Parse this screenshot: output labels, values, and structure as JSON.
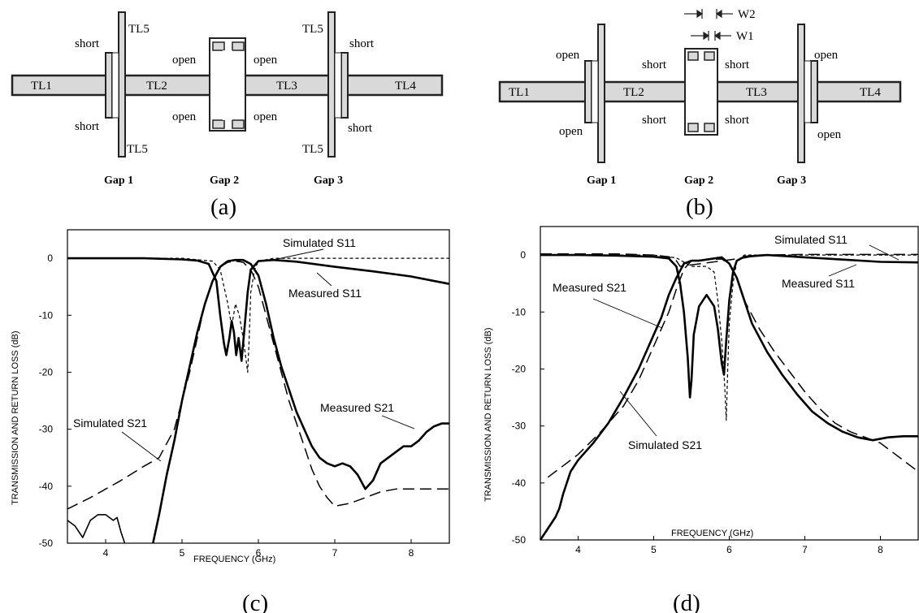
{
  "panels": {
    "a": {
      "caption": "(a)",
      "lines": [
        "TL1",
        "TL2",
        "TL3",
        "TL4"
      ],
      "stubs": [
        "TL5",
        "TL5",
        "TL5",
        "TL5"
      ],
      "terms": {
        "g1_top": "short",
        "g1_bot": "short",
        "g2_tl": "open",
        "g2_tr": "open",
        "g2_bl": "open",
        "g2_br": "open",
        "g3_top": "short",
        "g3_bot": "short"
      },
      "gaps": [
        "Gap 1",
        "Gap 2",
        "Gap 3"
      ]
    },
    "b": {
      "caption": "(b)",
      "lines": [
        "TL1",
        "TL2",
        "TL3",
        "TL4"
      ],
      "terms": {
        "g1_top": "open",
        "g1_bot": "open",
        "g2_tl": "short",
        "g2_tr": "short",
        "g2_bl": "short",
        "g2_br": "short",
        "g3_top": "open",
        "g3_bot": "open"
      },
      "widths": [
        "W2",
        "W1"
      ],
      "gaps": [
        "Gap 1",
        "Gap 2",
        "Gap 3"
      ]
    },
    "c": {
      "caption": "(c)",
      "annotations": {
        "sim_s11": "Simulated S11",
        "meas_s11": "Measured S11",
        "meas_s21": "Measured S21",
        "sim_s21": "Simulated S21"
      }
    },
    "d": {
      "caption": "(d)",
      "annotations": {
        "sim_s11": "Simulated S11",
        "meas_s21": "Measured S21",
        "meas_s11": "Measured S11",
        "sim_s21": "Simulated S21"
      }
    }
  },
  "chart_data": [
    {
      "type": "line",
      "panel": "c",
      "xlabel": "FREQUENCY (GHz)",
      "ylabel": "TRANSMISSION AND RETURN LOSS (dB)",
      "xlim": [
        3.5,
        8.5
      ],
      "ylim": [
        -50,
        5
      ],
      "xticks": [
        4,
        5,
        6,
        7,
        8
      ],
      "yticks": [
        0,
        -10,
        -20,
        -30,
        -40,
        -50
      ],
      "series": [
        {
          "name": "Measured S21",
          "style": "solid-thick",
          "points": [
            [
              4.62,
              -50
            ],
            [
              4.7,
              -45
            ],
            [
              4.8,
              -38
            ],
            [
              4.9,
              -32
            ],
            [
              5.0,
              -25
            ],
            [
              5.1,
              -19
            ],
            [
              5.2,
              -13
            ],
            [
              5.3,
              -8
            ],
            [
              5.4,
              -4
            ],
            [
              5.5,
              -1.5
            ],
            [
              5.6,
              -0.5
            ],
            [
              5.7,
              -0.3
            ],
            [
              5.8,
              -0.3
            ],
            [
              5.9,
              -1
            ],
            [
              6.0,
              -3
            ],
            [
              6.1,
              -8
            ],
            [
              6.2,
              -14
            ],
            [
              6.3,
              -19
            ],
            [
              6.4,
              -23
            ],
            [
              6.5,
              -27
            ],
            [
              6.6,
              -30
            ],
            [
              6.7,
              -33
            ],
            [
              6.8,
              -35
            ],
            [
              6.9,
              -36
            ],
            [
              7.0,
              -36.5
            ],
            [
              7.1,
              -36
            ],
            [
              7.2,
              -36.5
            ],
            [
              7.3,
              -38
            ],
            [
              7.4,
              -40.5
            ],
            [
              7.5,
              -39
            ],
            [
              7.6,
              -36
            ],
            [
              7.7,
              -35
            ],
            [
              7.8,
              -34
            ],
            [
              7.9,
              -33
            ],
            [
              8.0,
              -33
            ],
            [
              8.1,
              -32
            ],
            [
              8.2,
              -30.5
            ],
            [
              8.3,
              -29.5
            ],
            [
              8.4,
              -29
            ],
            [
              8.5,
              -29
            ]
          ]
        },
        {
          "name": "Measured S21",
          "style": "solid-thin",
          "points": [
            [
              3.5,
              -46
            ],
            [
              3.6,
              -47
            ],
            [
              3.7,
              -49
            ],
            [
              3.8,
              -46
            ],
            [
              3.9,
              -45
            ],
            [
              4.0,
              -45
            ],
            [
              4.1,
              -46
            ],
            [
              4.15,
              -45.5
            ],
            [
              4.2,
              -48
            ],
            [
              4.25,
              -50
            ]
          ]
        },
        {
          "name": "Measured S11",
          "style": "solid-thick",
          "points": [
            [
              3.5,
              0
            ],
            [
              4.0,
              0
            ],
            [
              4.5,
              0
            ],
            [
              5.0,
              -0.2
            ],
            [
              5.2,
              -0.4
            ],
            [
              5.35,
              -1
            ],
            [
              5.45,
              -4
            ],
            [
              5.5,
              -10
            ],
            [
              5.55,
              -15
            ],
            [
              5.58,
              -17
            ],
            [
              5.62,
              -14
            ],
            [
              5.65,
              -11
            ],
            [
              5.68,
              -13
            ],
            [
              5.71,
              -17
            ],
            [
              5.74,
              -14
            ],
            [
              5.78,
              -18
            ],
            [
              5.82,
              -12
            ],
            [
              5.86,
              -6
            ],
            [
              5.9,
              -2
            ],
            [
              6.0,
              -0.5
            ],
            [
              6.2,
              -0.3
            ],
            [
              6.5,
              -0.6
            ],
            [
              7.0,
              -1.5
            ],
            [
              7.5,
              -2.3
            ],
            [
              8.0,
              -3.2
            ],
            [
              8.5,
              -4.5
            ]
          ]
        },
        {
          "name": "Simulated S11",
          "style": "dashed-fine",
          "points": [
            [
              3.5,
              0
            ],
            [
              5.0,
              0
            ],
            [
              5.4,
              -0.5
            ],
            [
              5.5,
              -2
            ],
            [
              5.6,
              -8
            ],
            [
              5.65,
              -12
            ],
            [
              5.7,
              -8
            ],
            [
              5.75,
              -10
            ],
            [
              5.8,
              -14
            ],
            [
              5.84,
              -18
            ],
            [
              5.86,
              -20
            ],
            [
              5.88,
              -14
            ],
            [
              5.9,
              -6
            ],
            [
              5.95,
              -2
            ],
            [
              6.0,
              -0.5
            ],
            [
              6.2,
              0
            ],
            [
              8.5,
              0
            ]
          ]
        },
        {
          "name": "Simulated S21",
          "style": "dashed-long",
          "points": [
            [
              3.5,
              -44
            ],
            [
              3.8,
              -42
            ],
            [
              4.2,
              -39
            ],
            [
              4.5,
              -36.5
            ],
            [
              4.7,
              -35
            ],
            [
              4.9,
              -30
            ],
            [
              5.0,
              -25
            ],
            [
              5.1,
              -20
            ],
            [
              5.2,
              -14
            ],
            [
              5.3,
              -8
            ],
            [
              5.4,
              -4
            ],
            [
              5.5,
              -1.5
            ],
            [
              5.6,
              -0.7
            ],
            [
              5.7,
              -0.5
            ],
            [
              5.8,
              -0.7
            ],
            [
              5.9,
              -2
            ],
            [
              6.0,
              -5
            ],
            [
              6.1,
              -10
            ],
            [
              6.2,
              -15
            ],
            [
              6.3,
              -20
            ],
            [
              6.4,
              -25
            ],
            [
              6.5,
              -29
            ],
            [
              6.6,
              -33
            ],
            [
              6.7,
              -37
            ],
            [
              6.8,
              -40
            ],
            [
              6.9,
              -42
            ],
            [
              7.0,
              -43.5
            ],
            [
              7.2,
              -43
            ],
            [
              7.4,
              -42
            ],
            [
              7.6,
              -41
            ],
            [
              7.8,
              -40.5
            ],
            [
              8.0,
              -40.5
            ],
            [
              8.5,
              -40.5
            ]
          ]
        }
      ]
    },
    {
      "type": "line",
      "panel": "d",
      "xlabel": "FREQUENCY (GHz)",
      "ylabel": "TRANSMISSION AND RETURN LOSS (dB)",
      "xlim": [
        3.5,
        8.5
      ],
      "ylim": [
        -50,
        5
      ],
      "xticks": [
        4,
        5,
        6,
        7,
        8
      ],
      "yticks": [
        0,
        -10,
        -20,
        -30,
        -40,
        -50
      ],
      "series": [
        {
          "name": "Measured S21",
          "style": "solid-thick",
          "points": [
            [
              3.5,
              -50
            ],
            [
              3.6,
              -48
            ],
            [
              3.7,
              -46
            ],
            [
              3.75,
              -44.5
            ],
            [
              3.8,
              -42
            ],
            [
              3.9,
              -38
            ],
            [
              4.0,
              -36
            ],
            [
              4.2,
              -33
            ],
            [
              4.4,
              -29.5
            ],
            [
              4.6,
              -25
            ],
            [
              4.8,
              -20
            ],
            [
              5.0,
              -14
            ],
            [
              5.1,
              -11
            ],
            [
              5.2,
              -7
            ],
            [
              5.3,
              -4
            ],
            [
              5.4,
              -1.5
            ],
            [
              5.5,
              -1
            ],
            [
              5.6,
              -1
            ],
            [
              5.7,
              -0.8
            ],
            [
              5.8,
              -0.6
            ],
            [
              5.9,
              -0.4
            ],
            [
              6.0,
              -1.5
            ],
            [
              6.1,
              -4
            ],
            [
              6.2,
              -8
            ],
            [
              6.3,
              -12
            ],
            [
              6.5,
              -17
            ],
            [
              6.7,
              -21
            ],
            [
              6.9,
              -24.5
            ],
            [
              7.1,
              -27.5
            ],
            [
              7.3,
              -29.5
            ],
            [
              7.5,
              -31
            ],
            [
              7.7,
              -32
            ],
            [
              7.9,
              -32.5
            ],
            [
              8.1,
              -32
            ],
            [
              8.3,
              -31.8
            ],
            [
              8.5,
              -31.8
            ]
          ]
        },
        {
          "name": "Measured S11",
          "style": "solid-thick",
          "points": [
            [
              3.5,
              0
            ],
            [
              4.0,
              0
            ],
            [
              4.5,
              -0.1
            ],
            [
              5.0,
              -0.3
            ],
            [
              5.2,
              -0.6
            ],
            [
              5.3,
              -2
            ],
            [
              5.35,
              -5
            ],
            [
              5.4,
              -10
            ],
            [
              5.45,
              -18
            ],
            [
              5.48,
              -25
            ],
            [
              5.5,
              -22
            ],
            [
              5.53,
              -14
            ],
            [
              5.6,
              -9
            ],
            [
              5.7,
              -7
            ],
            [
              5.8,
              -9
            ],
            [
              5.85,
              -13
            ],
            [
              5.9,
              -19
            ],
            [
              5.93,
              -21
            ],
            [
              5.96,
              -15
            ],
            [
              6.0,
              -8
            ],
            [
              6.05,
              -3
            ],
            [
              6.1,
              -1
            ],
            [
              6.2,
              -0.3
            ],
            [
              6.5,
              0
            ],
            [
              7.0,
              -0.4
            ],
            [
              7.5,
              -0.8
            ],
            [
              8.0,
              -1.2
            ],
            [
              8.5,
              -1.3
            ]
          ]
        },
        {
          "name": "Simulated S11",
          "style": "dashed-fine",
          "points": [
            [
              3.5,
              0
            ],
            [
              5.0,
              0
            ],
            [
              5.3,
              -0.5
            ],
            [
              5.5,
              -2
            ],
            [
              5.7,
              -2
            ],
            [
              5.8,
              -3
            ],
            [
              5.85,
              -8
            ],
            [
              5.9,
              -15
            ],
            [
              5.94,
              -23
            ],
            [
              5.96,
              -29
            ],
            [
              5.98,
              -20
            ],
            [
              6.0,
              -12
            ],
            [
              6.05,
              -5
            ],
            [
              6.1,
              -1
            ],
            [
              6.2,
              0
            ],
            [
              8.5,
              0
            ]
          ]
        },
        {
          "name": "Simulated S21",
          "style": "dashed-long",
          "points": [
            [
              3.6,
              -39
            ],
            [
              3.8,
              -37
            ],
            [
              4.0,
              -35
            ],
            [
              4.3,
              -31
            ],
            [
              4.6,
              -26.5
            ],
            [
              4.8,
              -22
            ],
            [
              5.0,
              -16
            ],
            [
              5.2,
              -10
            ],
            [
              5.3,
              -6
            ],
            [
              5.4,
              -2.5
            ],
            [
              5.5,
              -1
            ],
            [
              5.7,
              -0.8
            ],
            [
              5.9,
              -0.7
            ],
            [
              6.0,
              -1.5
            ],
            [
              6.1,
              -4
            ],
            [
              6.2,
              -8
            ],
            [
              6.4,
              -13
            ],
            [
              6.6,
              -17
            ],
            [
              6.8,
              -20.5
            ],
            [
              7.0,
              -24
            ],
            [
              7.2,
              -27
            ],
            [
              7.4,
              -29.5
            ],
            [
              7.6,
              -31
            ],
            [
              7.8,
              -32
            ],
            [
              8.0,
              -33
            ],
            [
              8.2,
              -35
            ],
            [
              8.4,
              -37
            ],
            [
              8.5,
              -38
            ]
          ]
        },
        {
          "name": "Simulated S11",
          "style": "dashed-long",
          "points": [
            [
              3.5,
              0.2
            ],
            [
              4.5,
              0.2
            ],
            [
              5.0,
              0
            ],
            [
              5.2,
              -0.3
            ],
            [
              5.3,
              -1
            ],
            [
              5.35,
              -2
            ],
            [
              6.2,
              -0.5
            ],
            [
              6.4,
              0
            ],
            [
              7.0,
              0.1
            ],
            [
              8.5,
              0.1
            ]
          ]
        }
      ]
    }
  ]
}
